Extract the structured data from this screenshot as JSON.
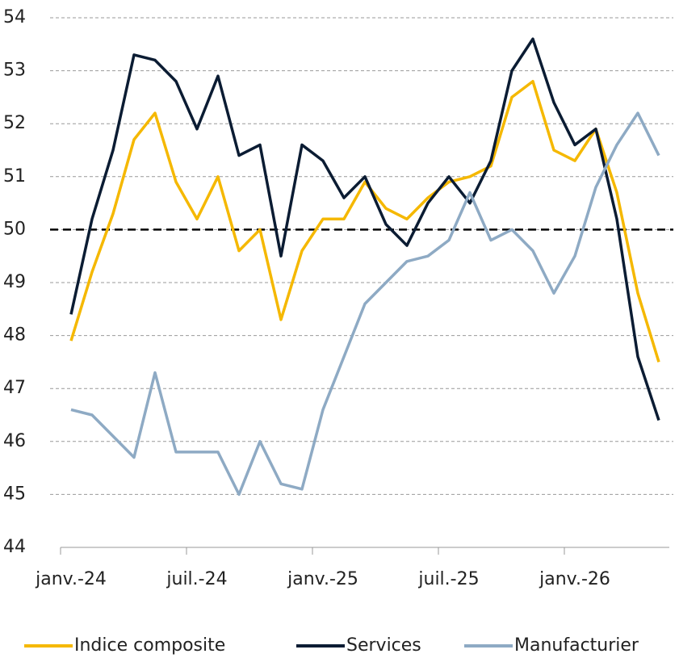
{
  "chart_data": {
    "type": "line",
    "categories": [
      "janv.-24",
      null,
      null,
      null,
      null,
      null,
      "juil.-24",
      null,
      null,
      null,
      null,
      null,
      "janv.-25",
      null,
      null,
      null,
      null,
      null,
      "juil.-25",
      null,
      null,
      null,
      null,
      null,
      "janv.-26",
      null,
      null,
      null,
      null
    ],
    "series": [
      {
        "name": "Indice composite",
        "color": "#f5b800",
        "values": [
          47.9,
          49.2,
          50.3,
          51.7,
          52.2,
          50.9,
          50.2,
          51.0,
          49.6,
          50.0,
          48.3,
          49.6,
          50.2,
          50.2,
          50.9,
          50.4,
          50.2,
          50.6,
          50.9,
          51.0,
          51.2,
          52.5,
          52.8,
          51.5,
          51.3,
          51.9,
          50.7,
          48.8,
          47.5
        ]
      },
      {
        "name": "Services",
        "color": "#0b1c33",
        "values": [
          48.4,
          50.2,
          51.5,
          53.3,
          53.2,
          52.8,
          51.9,
          52.9,
          51.4,
          51.6,
          49.5,
          51.6,
          51.3,
          50.6,
          51.0,
          50.1,
          49.7,
          50.5,
          51.0,
          50.5,
          51.3,
          53.0,
          53.6,
          52.4,
          51.6,
          51.9,
          50.2,
          47.6,
          46.4
        ]
      },
      {
        "name": "Manufacturier",
        "color": "#8eaac4",
        "values": [
          46.6,
          46.5,
          46.1,
          45.7,
          47.3,
          45.8,
          45.8,
          45.8,
          45.0,
          46.0,
          45.2,
          45.1,
          46.6,
          47.6,
          48.6,
          49.0,
          49.4,
          49.5,
          49.8,
          50.7,
          49.8,
          50.0,
          49.6,
          48.8,
          49.5,
          50.8,
          51.6,
          52.2,
          51.4
        ]
      }
    ],
    "ylim": [
      44,
      54
    ],
    "yticks": [
      44,
      45,
      46,
      47,
      48,
      49,
      50,
      51,
      52,
      53,
      54
    ],
    "grid": true,
    "reference_line": 50,
    "legend": "bottom"
  }
}
